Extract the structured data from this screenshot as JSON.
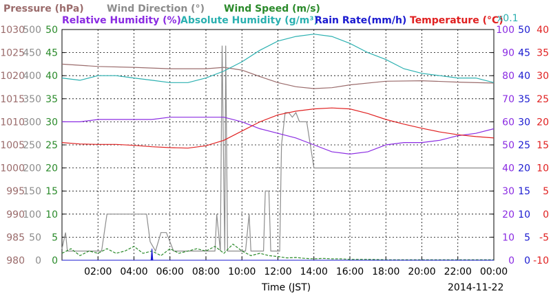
{
  "chart_data": {
    "type": "line",
    "legend_row1": [
      {
        "name": "Pressure (hPa)",
        "color": "#9a6b6b"
      },
      {
        "name": "Wind Direction (°)",
        "color": "#8c8c8c"
      },
      {
        "name": "Wind Speed (m/s)",
        "color": "#2a8a2a"
      }
    ],
    "legend_row2": [
      {
        "name": "Relative Humidity (%)",
        "color": "#8a2be2"
      },
      {
        "name": "Absolute Humidity (g/m³)",
        "color": "#2ab0b0"
      },
      {
        "name": "Rain Rate(mm/h)",
        "color": "#1a1ad0"
      },
      {
        "name": "Temperature (°C)",
        "color": "#e02020"
      }
    ],
    "abs_humidity_scale_note": "x0.1",
    "xlabel": "Time (JST)",
    "date": "2014-11-22",
    "x_ticks": [
      "02:00",
      "04:00",
      "06:00",
      "08:00",
      "10:00",
      "12:00",
      "14:00",
      "16:00",
      "18:00",
      "20:00",
      "22:00",
      "00:00"
    ],
    "xlim_hours": [
      0,
      24
    ],
    "axes": {
      "pressure": {
        "ticks": [
          "1030",
          "1025",
          "1020",
          "1015",
          "1010",
          "1005",
          "1000",
          "995",
          "990",
          "985",
          "980"
        ],
        "range": [
          980,
          1030
        ],
        "color": "#9a6b6b"
      },
      "wind_direction": {
        "ticks": [
          "500",
          "450",
          "400",
          "350",
          "300",
          "250",
          "200",
          "150",
          "100",
          "50",
          "0"
        ],
        "range": [
          0,
          500
        ],
        "color": "#8c8c8c"
      },
      "wind_speed": {
        "ticks": [
          "50",
          "45",
          "40",
          "35",
          "30",
          "25",
          "20",
          "15",
          "10",
          "5",
          "0"
        ],
        "range": [
          0,
          50
        ],
        "color": "#2a8a2a"
      },
      "humidity": {
        "ticks": [
          "100",
          "90",
          "80",
          "70",
          "60",
          "50",
          "40",
          "30",
          "20",
          "10",
          "0"
        ],
        "range": [
          0,
          100
        ],
        "color": "#8a2be2"
      },
      "rain_rate": {
        "ticks": [
          "50",
          "45",
          "40",
          "35",
          "30",
          "25",
          "20",
          "15",
          "10",
          "5",
          "0"
        ],
        "range": [
          0,
          50
        ],
        "color": "#1a1ad0"
      },
      "temperature": {
        "ticks": [
          "40",
          "35",
          "30",
          "25",
          "20",
          "15",
          "10",
          "5",
          "0",
          "-5",
          "-10"
        ],
        "range": [
          -10,
          40
        ],
        "color": "#e02020"
      }
    },
    "series": [
      {
        "name": "Pressure (hPa)",
        "axis": "pressure",
        "color": "#9a6b6b",
        "x": [
          0,
          2,
          4,
          6,
          8,
          9,
          10,
          11,
          12,
          13,
          14,
          15,
          16,
          18,
          20,
          22,
          24
        ],
        "y": [
          1022.5,
          1022,
          1021.8,
          1021.5,
          1021.5,
          1021.8,
          1021.2,
          1019.8,
          1018.5,
          1017.6,
          1017.2,
          1017.4,
          1018,
          1018.8,
          1018.9,
          1018.6,
          1018.4
        ]
      },
      {
        "name": "Wind Direction (°)",
        "axis": "wind_direction",
        "color": "#8c8c8c",
        "x": [
          0,
          0.2,
          0.3,
          1.0,
          1.5,
          2.2,
          2.5,
          3.0,
          4.0,
          4.7,
          4.9,
          5.2,
          5.5,
          5.8,
          6.2,
          7.0,
          8.0,
          8.5,
          8.6,
          8.8,
          8.9,
          9.0,
          9.05,
          9.1,
          9.2,
          9.3,
          9.5,
          10.2,
          10.4,
          10.5,
          10.6,
          10.7,
          11.0,
          11.2,
          11.3,
          11.5,
          11.6,
          11.8,
          12.1,
          12.2,
          12.4,
          12.6,
          12.8,
          13.0,
          13.2,
          13.6,
          14.0,
          16.0,
          18.0,
          20.0,
          22.0,
          24.0
        ],
        "y": [
          25,
          60,
          20,
          20,
          20,
          20,
          100,
          100,
          100,
          100,
          40,
          20,
          60,
          60,
          20,
          20,
          20,
          20,
          100,
          20,
          465,
          150,
          20,
          465,
          20,
          20,
          20,
          20,
          100,
          20,
          20,
          20,
          20,
          20,
          150,
          150,
          20,
          20,
          20,
          250,
          320,
          320,
          310,
          320,
          300,
          300,
          200,
          200,
          200,
          200,
          200,
          200
        ]
      },
      {
        "name": "Wind Speed (m/s)",
        "axis": "wind_speed",
        "color": "#2a8a2a",
        "x": [
          0,
          0.5,
          1,
          1.5,
          2,
          2.5,
          3,
          3.5,
          4,
          4.5,
          5,
          5.5,
          6,
          6.5,
          7,
          7.5,
          8,
          8.5,
          9,
          9.5,
          10,
          10.5,
          11,
          11.5,
          12,
          12.5,
          13,
          13.5,
          14,
          14.5,
          15,
          15.5,
          16,
          17,
          18,
          19,
          20,
          21,
          22,
          23,
          24
        ],
        "y": [
          1.5,
          2.5,
          1,
          2,
          1.5,
          2.5,
          1.5,
          2,
          3,
          1.5,
          2,
          1,
          2.5,
          1.5,
          2,
          2.5,
          2,
          3,
          1.5,
          3.5,
          2,
          1,
          1.5,
          1,
          0.8,
          0.5,
          0.6,
          0.4,
          0.3,
          0.4,
          0.3,
          0.3,
          0.2,
          0.2,
          0.1,
          0.1,
          0.1,
          0.1,
          0.1,
          0.1,
          0.1
        ]
      },
      {
        "name": "Relative Humidity (%)",
        "axis": "humidity",
        "color": "#8a2be2",
        "x": [
          0,
          1,
          2,
          3,
          4,
          5,
          6,
          7,
          8,
          9,
          10,
          11,
          12,
          13,
          14,
          15,
          16,
          17,
          18,
          19,
          20,
          21,
          22,
          23,
          24
        ],
        "y": [
          60,
          60,
          61,
          61,
          61,
          61,
          62,
          62,
          62,
          62,
          60,
          57,
          55,
          53,
          50,
          47,
          46,
          47,
          50,
          51,
          51,
          52,
          54,
          55,
          57
        ]
      },
      {
        "name": "Absolute Humidity (g/m³)",
        "axis": "humidity",
        "color": "#2ab0b0",
        "x": [
          0,
          1,
          2,
          3,
          4,
          5,
          6,
          7,
          8,
          9,
          10,
          11,
          12,
          13,
          14,
          15,
          16,
          17,
          18,
          19,
          20,
          21,
          22,
          23,
          24
        ],
        "y": [
          79,
          78,
          80,
          80,
          79,
          78,
          77,
          77,
          79,
          82,
          86,
          91,
          95,
          97,
          98,
          97,
          94,
          90,
          87,
          83,
          81,
          80,
          79,
          79,
          77
        ]
      },
      {
        "name": "Rain Rate(mm/h)",
        "axis": "rain_rate",
        "color": "#1a1ad0",
        "x": [
          0,
          4.95,
          5.0,
          5.05,
          24
        ],
        "y": [
          0,
          0,
          2.5,
          0,
          0
        ]
      },
      {
        "name": "Temperature (°C)",
        "axis": "temperature",
        "color": "#e02020",
        "x": [
          0,
          1,
          2,
          3,
          4,
          5,
          6,
          7,
          8,
          9,
          10,
          11,
          12,
          13,
          14,
          15,
          16,
          17,
          18,
          19,
          20,
          21,
          22,
          23,
          24
        ],
        "y": [
          15.5,
          15.2,
          15.1,
          15.1,
          14.9,
          14.6,
          14.4,
          14.3,
          14.8,
          16.0,
          18.0,
          20.0,
          21.5,
          22.3,
          22.8,
          23.0,
          22.8,
          21.8,
          20.5,
          19.5,
          18.6,
          17.8,
          17.2,
          16.8,
          16.5
        ]
      }
    ]
  }
}
